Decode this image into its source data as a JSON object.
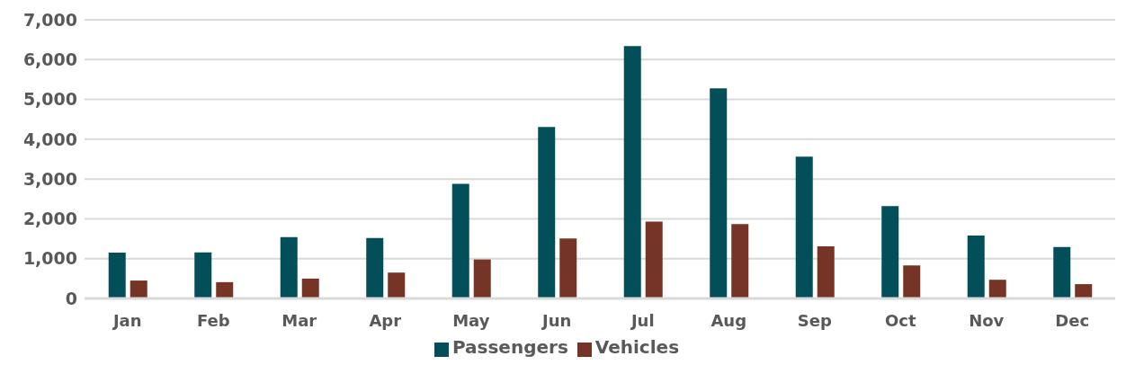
{
  "chart_data": {
    "type": "bar",
    "categories": [
      "Jan",
      "Feb",
      "Mar",
      "Apr",
      "May",
      "Jun",
      "Jul",
      "Aug",
      "Sep",
      "Oct",
      "Nov",
      "Dec"
    ],
    "series": [
      {
        "name": "Passengers",
        "color": "#024f5a",
        "values": [
          1150,
          1160,
          1540,
          1520,
          2880,
          4310,
          6340,
          5280,
          3560,
          2320,
          1580,
          1290
        ]
      },
      {
        "name": "Vehicles",
        "color": "#763426",
        "values": [
          450,
          410,
          500,
          650,
          980,
          1510,
          1930,
          1870,
          1310,
          830,
          470,
          360
        ]
      }
    ],
    "ylim": [
      0,
      7000
    ],
    "yticks": [
      0,
      {
        "value": 1000,
        "label": "1,000"
      },
      {
        "value": 2000,
        "label": "2,000"
      },
      {
        "value": 3000,
        "label": "3,000"
      },
      {
        "value": 4000,
        "label": "4,000"
      },
      {
        "value": 5000,
        "label": "5,000"
      },
      {
        "value": 6000,
        "label": "6,000"
      },
      {
        "value": 7000,
        "label": "7,000"
      }
    ],
    "grid": "y",
    "legend": "bottom"
  }
}
